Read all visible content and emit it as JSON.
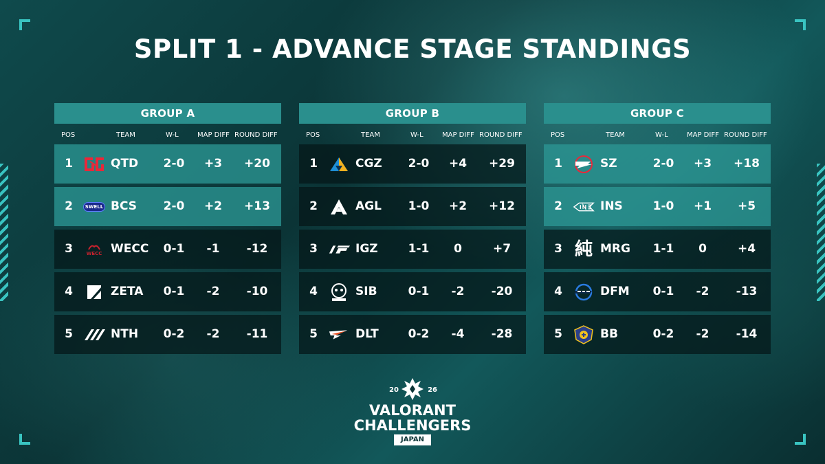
{
  "title": "SPLIT 1 - ADVANCE STAGE STANDINGS",
  "columns": {
    "pos": "POS",
    "team": "TEAM",
    "wl": "W-L",
    "map_diff": "MAP DIFF",
    "round_diff": "ROUND DIFF"
  },
  "colors": {
    "accent": "#2a8f8d",
    "qualified_row": "#2c9694",
    "row": "#041618",
    "corner": "#39c4c1"
  },
  "groups": [
    {
      "name": "GROUP A",
      "rows": [
        {
          "pos": "1",
          "team": "QTD",
          "wl": "2-0",
          "map_diff": "+3",
          "round_diff": "+20",
          "logo": "qtd-logo",
          "qualified": true
        },
        {
          "pos": "2",
          "team": "BCS",
          "wl": "2-0",
          "map_diff": "+2",
          "round_diff": "+13",
          "logo": "bcs-logo",
          "logo_text": "SWELL",
          "qualified": true
        },
        {
          "pos": "3",
          "team": "WECC",
          "wl": "0-1",
          "map_diff": "-1",
          "round_diff": "-12",
          "logo": "wecc-logo",
          "logo_text": "WECC",
          "qualified": false
        },
        {
          "pos": "4",
          "team": "ZETA",
          "wl": "0-1",
          "map_diff": "-2",
          "round_diff": "-10",
          "logo": "zeta-logo",
          "qualified": false
        },
        {
          "pos": "5",
          "team": "NTH",
          "wl": "0-2",
          "map_diff": "-2",
          "round_diff": "-11",
          "logo": "nth-logo",
          "qualified": false
        }
      ]
    },
    {
      "name": "GROUP B",
      "rows": [
        {
          "pos": "1",
          "team": "CGZ",
          "wl": "2-0",
          "map_diff": "+4",
          "round_diff": "+29",
          "logo": "cgz-logo",
          "qualified": false
        },
        {
          "pos": "2",
          "team": "AGL",
          "wl": "1-0",
          "map_diff": "+2",
          "round_diff": "+12",
          "logo": "agl-logo",
          "qualified": false
        },
        {
          "pos": "3",
          "team": "IGZ",
          "wl": "1-1",
          "map_diff": "0",
          "round_diff": "+7",
          "logo": "igz-logo",
          "qualified": false
        },
        {
          "pos": "4",
          "team": "SIB",
          "wl": "0-1",
          "map_diff": "-2",
          "round_diff": "-20",
          "logo": "sib-logo",
          "qualified": false
        },
        {
          "pos": "5",
          "team": "DLT",
          "wl": "0-2",
          "map_diff": "-4",
          "round_diff": "-28",
          "logo": "dlt-logo",
          "qualified": false
        }
      ]
    },
    {
      "name": "GROUP C",
      "rows": [
        {
          "pos": "1",
          "team": "SZ",
          "wl": "2-0",
          "map_diff": "+3",
          "round_diff": "+18",
          "logo": "sz-logo",
          "qualified": true
        },
        {
          "pos": "2",
          "team": "INS",
          "wl": "1-0",
          "map_diff": "+1",
          "round_diff": "+5",
          "logo": "ins-logo",
          "qualified": true
        },
        {
          "pos": "3",
          "team": "MRG",
          "wl": "1-1",
          "map_diff": "0",
          "round_diff": "+4",
          "logo": "mrg-logo",
          "logo_text": "純",
          "qualified": false
        },
        {
          "pos": "4",
          "team": "DFM",
          "wl": "0-1",
          "map_diff": "-2",
          "round_diff": "-13",
          "logo": "dfm-logo",
          "qualified": false
        },
        {
          "pos": "5",
          "team": "BB",
          "wl": "0-2",
          "map_diff": "-2",
          "round_diff": "-14",
          "logo": "bb-logo",
          "qualified": false
        }
      ]
    }
  ],
  "brand": {
    "year_left": "20",
    "year_right": "26",
    "line1": "VALORANT",
    "line2": "CHALLENGERS",
    "line3": "JAPAN"
  }
}
